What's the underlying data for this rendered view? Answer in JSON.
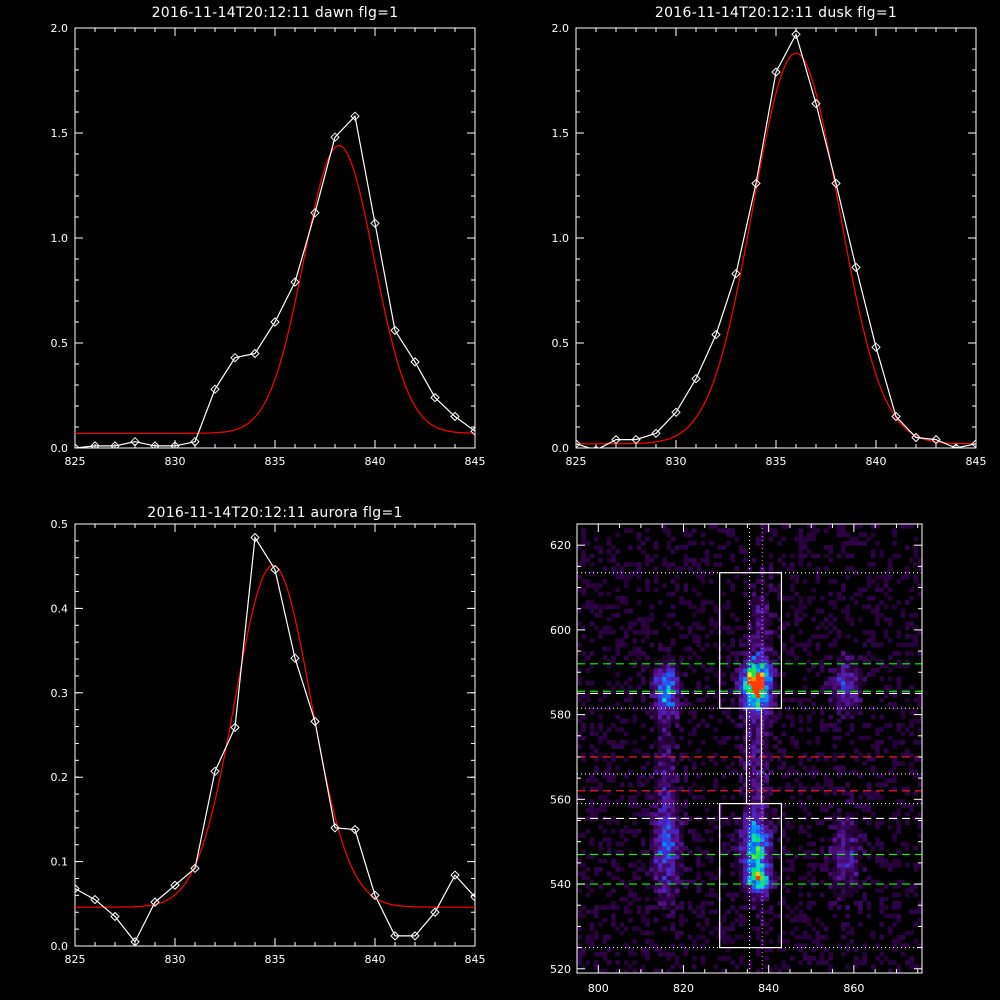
{
  "chart_data": [
    {
      "id": "dawn",
      "type": "line",
      "title": "2016-11-14T20:12:11 dawn flg=1",
      "xlim": [
        825,
        845
      ],
      "ylim": [
        0,
        2.0
      ],
      "x_ticks": [
        825,
        830,
        835,
        840,
        845
      ],
      "y_ticks": [
        0.0,
        0.5,
        1.0,
        1.5,
        2.0
      ],
      "y_tick_labels": [
        "0.0",
        "0.5",
        "1.0",
        "1.5",
        "2.0"
      ],
      "series": [
        {
          "kind": "data",
          "color": "#ffffff",
          "marker": "diamond",
          "x": [
            825,
            826,
            827,
            828,
            829,
            830,
            831,
            832,
            833,
            834,
            835,
            836,
            837,
            838,
            839,
            840,
            841,
            842,
            843,
            844,
            845
          ],
          "y": [
            0.0,
            0.01,
            0.01,
            0.03,
            0.01,
            0.01,
            0.03,
            0.28,
            0.43,
            0.45,
            0.6,
            0.79,
            1.12,
            1.48,
            1.58,
            1.07,
            0.56,
            0.41,
            0.24,
            0.15,
            0.08
          ]
        },
        {
          "kind": "fit",
          "color": "#ff0000",
          "gauss": {
            "amp": 1.37,
            "center": 838.2,
            "sigma": 1.75,
            "offset": 0.07
          }
        }
      ]
    },
    {
      "id": "dusk",
      "type": "line",
      "title": "2016-11-14T20:12:11 dusk flg=1",
      "xlim": [
        825,
        845
      ],
      "ylim": [
        0,
        2.0
      ],
      "x_ticks": [
        825,
        830,
        835,
        840,
        845
      ],
      "y_ticks": [
        0.0,
        0.5,
        1.0,
        1.5,
        2.0
      ],
      "y_tick_labels": [
        "0.0",
        "0.5",
        "1.0",
        "1.5",
        "2.0"
      ],
      "series": [
        {
          "kind": "data",
          "color": "#ffffff",
          "marker": "diamond",
          "x": [
            825,
            826,
            827,
            828,
            829,
            830,
            831,
            832,
            833,
            834,
            835,
            836,
            837,
            838,
            839,
            840,
            841,
            842,
            843,
            844,
            845
          ],
          "y": [
            0.02,
            -0.01,
            0.04,
            0.04,
            0.07,
            0.17,
            0.33,
            0.54,
            0.83,
            1.26,
            1.79,
            1.97,
            1.64,
            1.26,
            0.86,
            0.48,
            0.15,
            0.05,
            0.04,
            0.0,
            0.02
          ]
        },
        {
          "kind": "fit",
          "color": "#ff0000",
          "gauss": {
            "amp": 1.86,
            "center": 836.0,
            "sigma": 2.15,
            "offset": 0.02
          }
        }
      ]
    },
    {
      "id": "aurora",
      "type": "line",
      "title": "2016-11-14T20:12:11 aurora flg=1",
      "xlim": [
        825,
        845
      ],
      "ylim": [
        0,
        0.5
      ],
      "x_ticks": [
        825,
        830,
        835,
        840,
        845
      ],
      "y_ticks": [
        0.0,
        0.1,
        0.2,
        0.3,
        0.4,
        0.5
      ],
      "y_tick_labels": [
        "0.0",
        "0.1",
        "0.2",
        "0.3",
        "0.4",
        "0.5"
      ],
      "series": [
        {
          "kind": "data",
          "color": "#ffffff",
          "marker": "diamond",
          "x": [
            825,
            826,
            827,
            828,
            829,
            830,
            831,
            832,
            833,
            834,
            835,
            836,
            837,
            838,
            839,
            840,
            841,
            842,
            843,
            844,
            845
          ],
          "y": [
            0.068,
            0.055,
            0.035,
            0.005,
            0.052,
            0.072,
            0.092,
            0.207,
            0.259,
            0.484,
            0.446,
            0.341,
            0.266,
            0.14,
            0.138,
            0.06,
            0.012,
            0.012,
            0.04,
            0.084,
            0.058
          ]
        },
        {
          "kind": "fit",
          "color": "#ff0000",
          "gauss": {
            "amp": 0.405,
            "center": 834.9,
            "sigma": 1.9,
            "offset": 0.046
          }
        }
      ]
    },
    {
      "id": "image",
      "type": "heatmap",
      "xlim": [
        795,
        876
      ],
      "ylim": [
        519,
        625
      ],
      "x_ticks": [
        800,
        820,
        840,
        860
      ],
      "y_ticks": [
        520,
        540,
        560,
        580,
        600,
        620
      ],
      "blobs": [
        {
          "x": 837,
          "y": 587,
          "sx": 2.2,
          "sy": 3.5,
          "amp": 1.0
        },
        {
          "x": 837,
          "y": 547,
          "sx": 2.2,
          "sy": 6.0,
          "amp": 0.6
        },
        {
          "x": 838,
          "y": 541,
          "sx": 1.5,
          "sy": 1.5,
          "amp": 0.45
        },
        {
          "x": 816,
          "y": 586,
          "sx": 2.0,
          "sy": 4.0,
          "amp": 0.5
        },
        {
          "x": 816,
          "y": 548,
          "sx": 2.2,
          "sy": 8.0,
          "amp": 0.32
        },
        {
          "x": 858,
          "y": 587,
          "sx": 2.5,
          "sy": 4.5,
          "amp": 0.26
        },
        {
          "x": 858,
          "y": 547,
          "sx": 2.5,
          "sy": 7.0,
          "amp": 0.2
        },
        {
          "x": 837,
          "y": 570,
          "sx": 2.0,
          "sy": 12.0,
          "amp": 0.18
        },
        {
          "x": 816,
          "y": 568,
          "sx": 2.0,
          "sy": 10.0,
          "amp": 0.12
        },
        {
          "x": 838,
          "y": 600,
          "sx": 2.0,
          "sy": 10.0,
          "amp": 0.14
        }
      ],
      "boxes": [
        {
          "x0": 828.5,
          "x1": 843.0,
          "y0": 581.5,
          "y1": 613.5
        },
        {
          "x0": 828.5,
          "x1": 843.0,
          "y0": 525.0,
          "y1": 559.0
        },
        {
          "x0": 834.8,
          "x1": 838.3,
          "y0": 559.0,
          "y1": 581.5
        }
      ],
      "vlines": [
        {
          "x": 835.5,
          "color": "#ffffff",
          "style": "dotted"
        },
        {
          "x": 838.5,
          "color": "#ff66ff",
          "style": "dotted"
        }
      ],
      "hlines": [
        {
          "y": 592.0,
          "color": "#00ff00",
          "style": "dashed"
        },
        {
          "y": 585.5,
          "color": "#00ff00",
          "style": "dashed"
        },
        {
          "y": 585.0,
          "color": "#ffffff",
          "style": "dashed"
        },
        {
          "y": 570.0,
          "color": "#ff2222",
          "style": "dashed"
        },
        {
          "y": 562.0,
          "color": "#ff2222",
          "style": "dashed"
        },
        {
          "y": 555.5,
          "color": "#ffffff",
          "style": "dashed"
        },
        {
          "y": 547.0,
          "color": "#00ff00",
          "style": "dashed"
        },
        {
          "y": 540.0,
          "color": "#00ff00",
          "style": "dashed"
        },
        {
          "y": 613.5,
          "color": "#ffffff",
          "style": "dotted"
        },
        {
          "y": 581.5,
          "color": "#ffffff",
          "style": "dotted"
        },
        {
          "y": 566.0,
          "color": "#ffffff",
          "style": "dotted"
        },
        {
          "y": 559.0,
          "color": "#ffffff",
          "style": "dotted"
        },
        {
          "y": 525.0,
          "color": "#ffffff",
          "style": "dotted"
        }
      ]
    }
  ]
}
